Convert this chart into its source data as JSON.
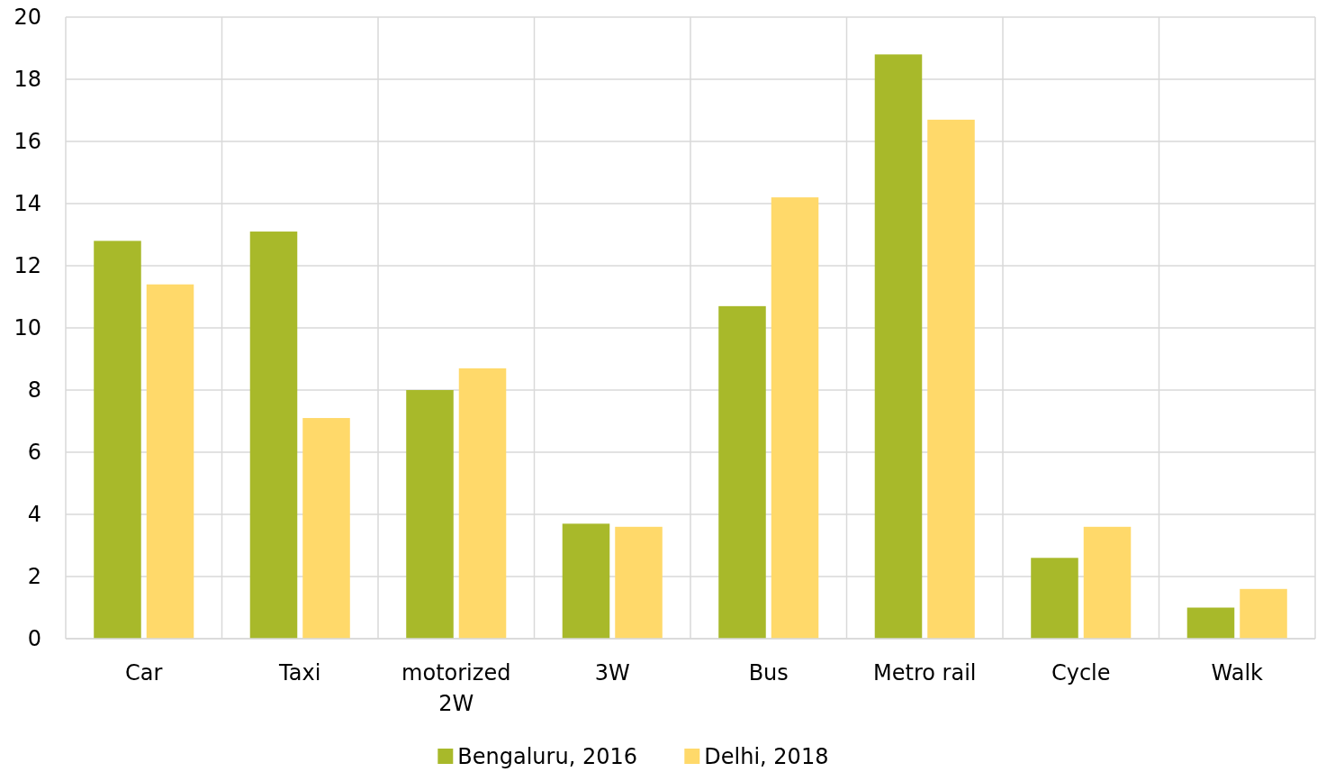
{
  "chart_data": {
    "type": "bar",
    "categories": [
      "Car",
      "Taxi",
      "motorized 2W",
      "3W",
      "Bus",
      "Metro rail",
      "Cycle",
      "Walk"
    ],
    "series": [
      {
        "name": "Bengaluru, 2016",
        "color": "#a8b92a",
        "values": [
          12.8,
          13.1,
          8.0,
          3.7,
          10.7,
          18.8,
          2.6,
          1.0
        ]
      },
      {
        "name": "Delhi, 2018",
        "color": "#ffd96a",
        "values": [
          11.4,
          7.1,
          8.7,
          3.6,
          14.2,
          16.7,
          3.6,
          1.6
        ]
      }
    ],
    "ylim": [
      0,
      20
    ],
    "yticks": [
      0,
      2,
      4,
      6,
      8,
      10,
      12,
      14,
      16,
      18,
      20
    ],
    "grid": true,
    "legend": "bottom"
  }
}
